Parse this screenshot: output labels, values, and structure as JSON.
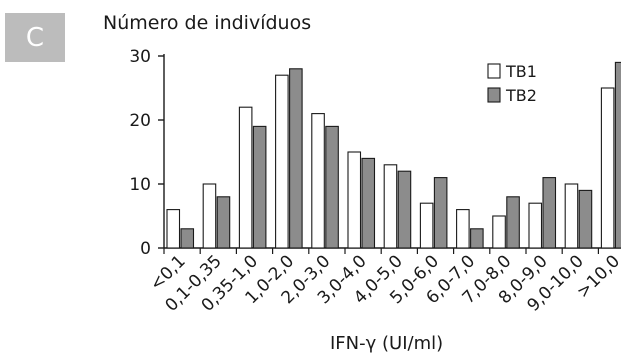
{
  "panel_tag": "C",
  "chart_data": {
    "type": "bar",
    "ylabel": "Número de indivíduos",
    "xlabel": "IFN-γ (UI/ml)",
    "ylim": [
      0,
      30
    ],
    "yticks": [
      0,
      10,
      20,
      30
    ],
    "categories": [
      "<0,1",
      "0,1-0,35",
      "0,35-1,0",
      "1,0-2,0",
      "2,0-3,0",
      "3,0-4,0",
      "4,0-5,0",
      "5,0-6,0",
      "6,0-7,0",
      "7,0-8,0",
      "8,0-9,0",
      "9,0-10,0",
      ">10,0"
    ],
    "series": [
      {
        "name": "TB1",
        "color": "#ffffff",
        "values": [
          6,
          10,
          22,
          27,
          21,
          15,
          13,
          7,
          6,
          5,
          7,
          10,
          25
        ]
      },
      {
        "name": "TB2",
        "color": "#8c8c8c",
        "values": [
          3,
          8,
          19,
          28,
          19,
          14,
          12,
          11,
          3,
          8,
          11,
          9,
          29
        ]
      }
    ],
    "legend": "top-right",
    "grid": false
  }
}
